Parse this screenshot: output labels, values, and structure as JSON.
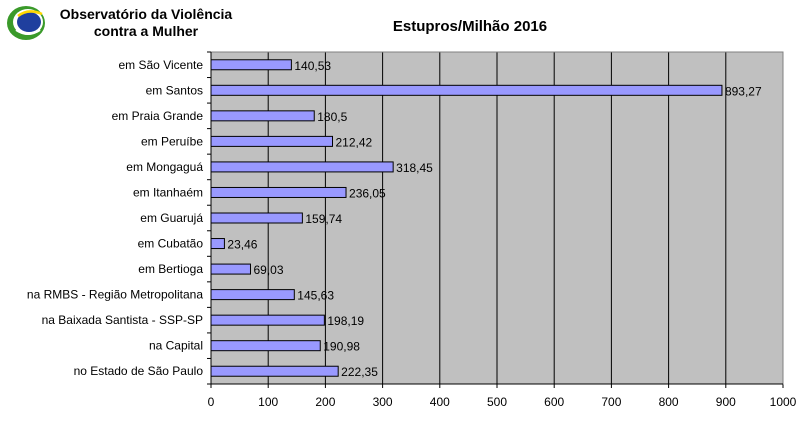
{
  "header": {
    "org_line1": "Observatório da Violência",
    "org_line2": "contra a Mulher"
  },
  "colors": {
    "bar_fill": "#9999FF",
    "plot_background": "#C0C0C0",
    "logo_green": "#3a9a2a",
    "logo_blue": "#1f3f9e"
  },
  "chart_data": {
    "type": "bar",
    "orientation": "horizontal",
    "title": "Estupros/Milhão  2016",
    "xlabel": "",
    "ylabel": "",
    "categories": [
      "em São Vicente",
      "em Santos",
      "em Praia Grande",
      "em Peruíbe",
      "em Mongaguá",
      "em Itanhaém",
      "em Guarujá",
      "em Cubatão",
      "em Bertioga",
      "na RMBS - Região Metropolitana",
      "na Baixada Santista - SSP-SP",
      "na Capital",
      "no Estado de São Paulo"
    ],
    "values": [
      140.53,
      893.27,
      180.5,
      212.42,
      318.45,
      236.05,
      159.74,
      23.46,
      69.03,
      145.63,
      198.19,
      190.98,
      222.35
    ],
    "value_labels": [
      "140,53",
      "893,27",
      "180,5",
      "212,42",
      "318,45",
      "236,05",
      "159,74",
      "23,46",
      "69,03",
      "145,63",
      "198,19",
      "190,98",
      "222,35"
    ],
    "xlim": [
      0,
      1000
    ],
    "xticks": [
      0,
      100,
      200,
      300,
      400,
      500,
      600,
      700,
      800,
      900,
      1000
    ],
    "xtick_labels": [
      "0",
      "100",
      "200",
      "300",
      "400",
      "500",
      "600",
      "700",
      "800",
      "900",
      "1000"
    ],
    "grid": "vertical",
    "legend": "none"
  }
}
